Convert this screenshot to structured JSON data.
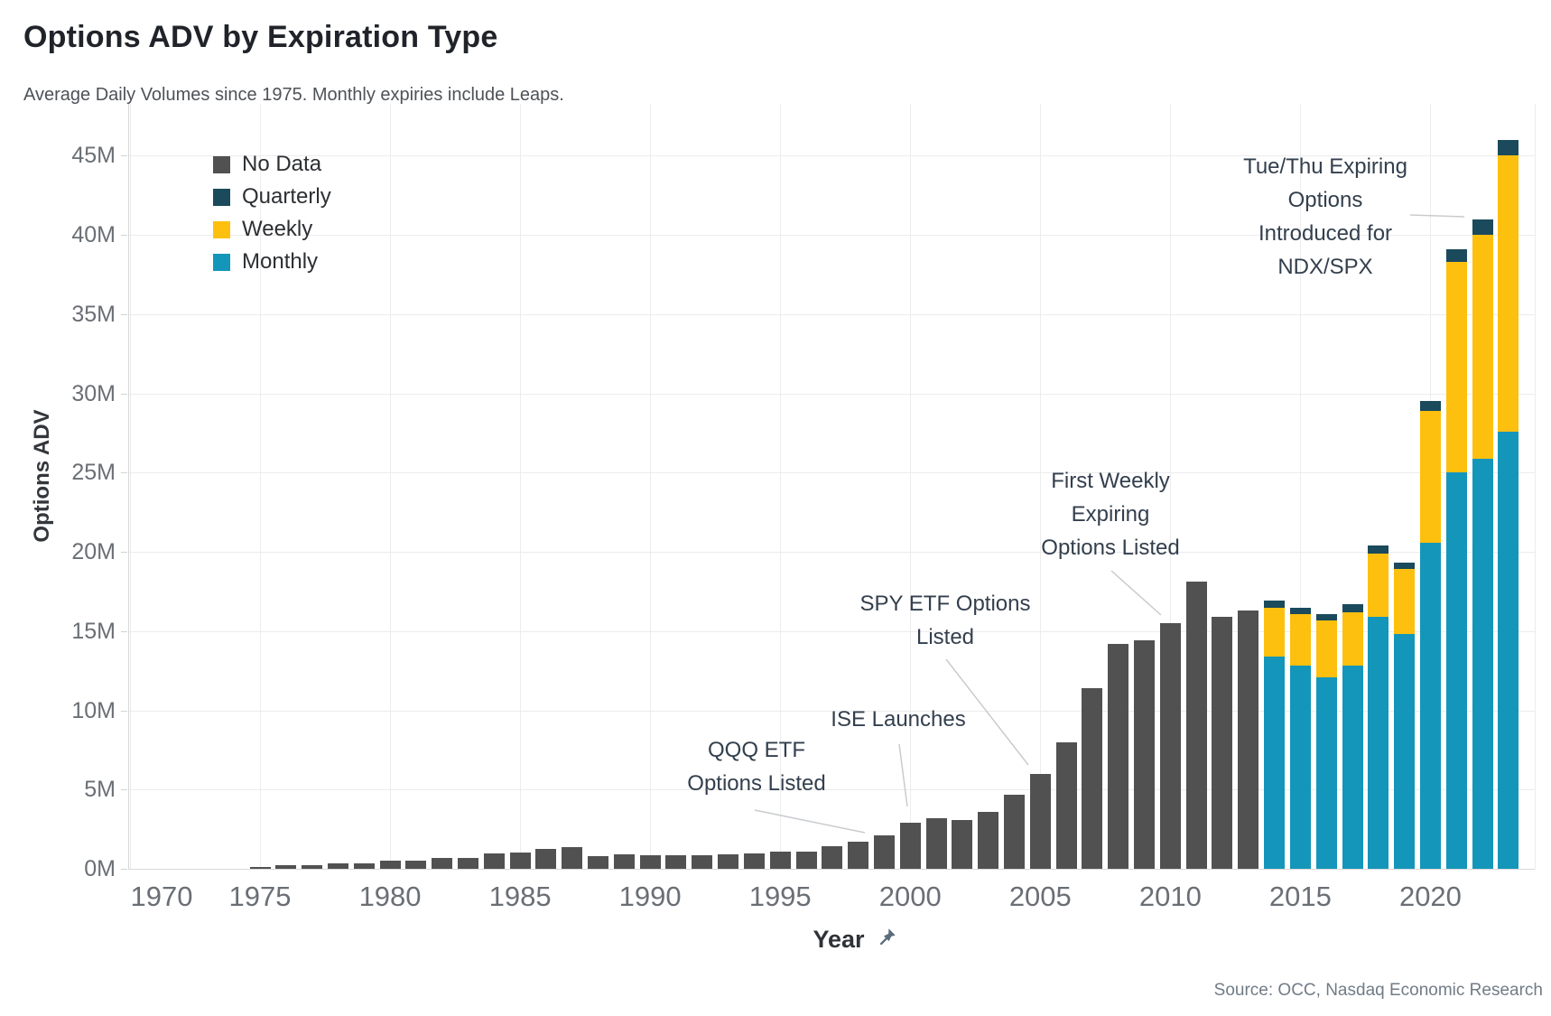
{
  "header": {
    "title": "Options ADV by Expiration Type",
    "subtitle": "Average Daily Volumes since 1975. Monthly expiries include Leaps."
  },
  "source_note": "Source: OCC, Nasdaq Economic Research",
  "y_axis": {
    "title": "Options ADV",
    "tick_values": [
      0,
      5,
      10,
      15,
      20,
      25,
      30,
      35,
      40,
      45
    ],
    "tick_suffix": "M"
  },
  "x_axis": {
    "title": "Year",
    "tick_values": [
      1970,
      1975,
      1980,
      1985,
      1990,
      1995,
      2000,
      2005,
      2010,
      2015,
      2020
    ],
    "pin_icon": "pin-icon"
  },
  "legend": [
    {
      "label": "No Data",
      "color": "#515151"
    },
    {
      "label": "Quarterly",
      "color": "#1A4A5C"
    },
    {
      "label": "Weekly",
      "color": "#FEC00F"
    },
    {
      "label": "Monthly",
      "color": "#1496BA"
    }
  ],
  "annotations": [
    {
      "id": "qqq",
      "lines": [
        "QQQ ETF",
        "Options Listed"
      ]
    },
    {
      "id": "ise",
      "lines": [
        "ISE Launches"
      ]
    },
    {
      "id": "spy",
      "lines": [
        "SPY ETF Options",
        "Listed"
      ]
    },
    {
      "id": "first_weekly",
      "lines": [
        "First Weekly",
        "Expiring",
        "Options Listed"
      ]
    },
    {
      "id": "tue_thu",
      "lines": [
        "Tue/Thu Expiring",
        "Options",
        "Introduced for",
        "NDX/SPX"
      ]
    }
  ],
  "chart_data": {
    "type": "bar",
    "stacked": true,
    "title": "Options ADV by Expiration Type",
    "ylabel": "Options ADV",
    "xlabel": "Year",
    "unit": "millions of contracts per day",
    "ylim": [
      0,
      46.5
    ],
    "grid": true,
    "legend_position": "top-left-inside",
    "no_data_series": {
      "name": "No Data",
      "start_year": 1975,
      "end_year": 2013,
      "values": [
        0.1,
        0.25,
        0.25,
        0.35,
        0.35,
        0.5,
        0.5,
        0.7,
        0.7,
        0.95,
        1.05,
        1.25,
        1.35,
        0.8,
        0.9,
        0.85,
        0.85,
        0.85,
        0.9,
        0.95,
        1.1,
        1.1,
        1.4,
        1.7,
        2.1,
        2.9,
        3.2,
        3.05,
        3.6,
        4.7,
        6.0,
        8.0,
        11.4,
        14.2,
        14.4,
        15.5,
        18.1,
        15.9,
        16.3
      ]
    },
    "stacked_series": {
      "start_year": 2014,
      "end_year": 2023,
      "stack_order_bottom_to_top": [
        "Monthly",
        "Weekly",
        "Quarterly"
      ],
      "monthly": [
        13.4,
        12.8,
        12.1,
        12.8,
        15.9,
        14.8,
        20.6,
        25.0,
        25.9,
        27.6
      ],
      "weekly": [
        3.1,
        3.3,
        3.6,
        3.4,
        4.0,
        4.1,
        8.3,
        13.3,
        14.1,
        17.4
      ],
      "quarterly": [
        0.4,
        0.4,
        0.35,
        0.5,
        0.5,
        0.45,
        0.6,
        0.8,
        1.0,
        1.0
      ]
    }
  }
}
